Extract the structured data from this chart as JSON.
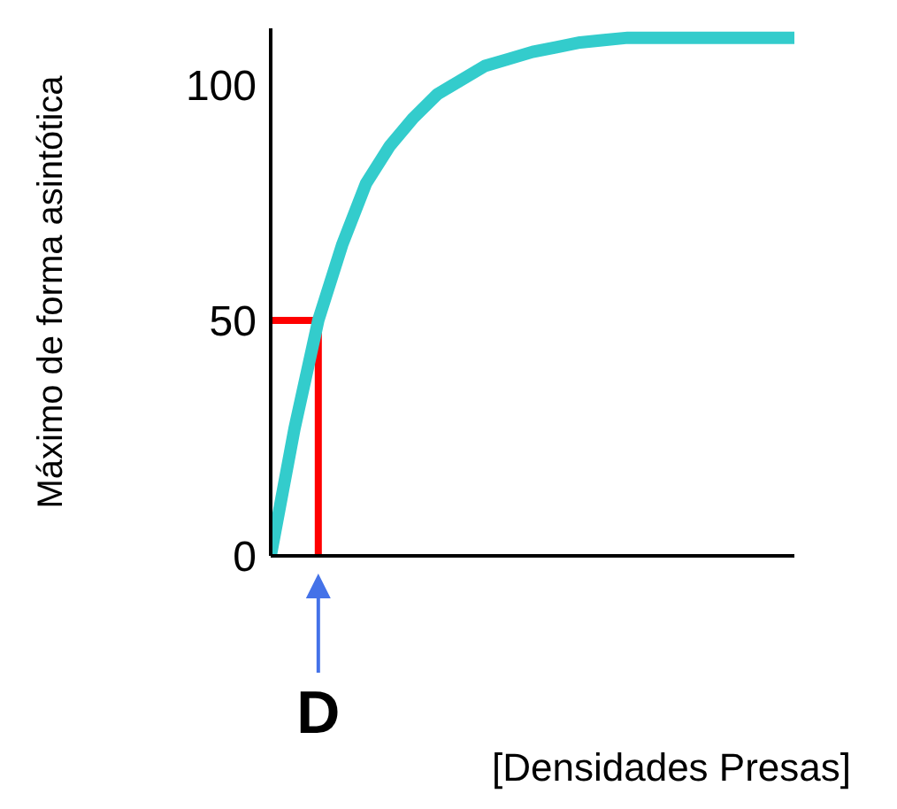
{
  "chart_data": {
    "type": "line",
    "xlabel": "[Densidades Presas]",
    "ylabel": "Máximo de forma asintótica",
    "categories": [
      null,
      null,
      "D",
      null,
      null,
      null,
      null,
      null,
      null,
      null,
      null,
      null,
      null,
      null,
      null,
      null,
      null,
      null,
      null,
      null,
      null,
      null,
      null
    ],
    "ylim": [
      0,
      112
    ],
    "yticks": [
      0,
      50,
      100
    ],
    "grid": false,
    "marker": "none",
    "line_style": "solid",
    "series": [
      {
        "color": "#33cccc",
        "values": [
          0,
          27,
          50,
          66,
          79,
          87,
          93,
          98,
          101,
          104,
          105.5,
          107,
          108,
          109,
          109.5,
          110,
          110,
          110,
          110,
          110,
          110,
          110,
          110
        ]
      }
    ],
    "ref_lines": [
      {
        "axis": "y",
        "value": 50,
        "color": "#ff0000"
      },
      {
        "axis": "x",
        "value": "D",
        "color": "#ff0000"
      }
    ]
  }
}
